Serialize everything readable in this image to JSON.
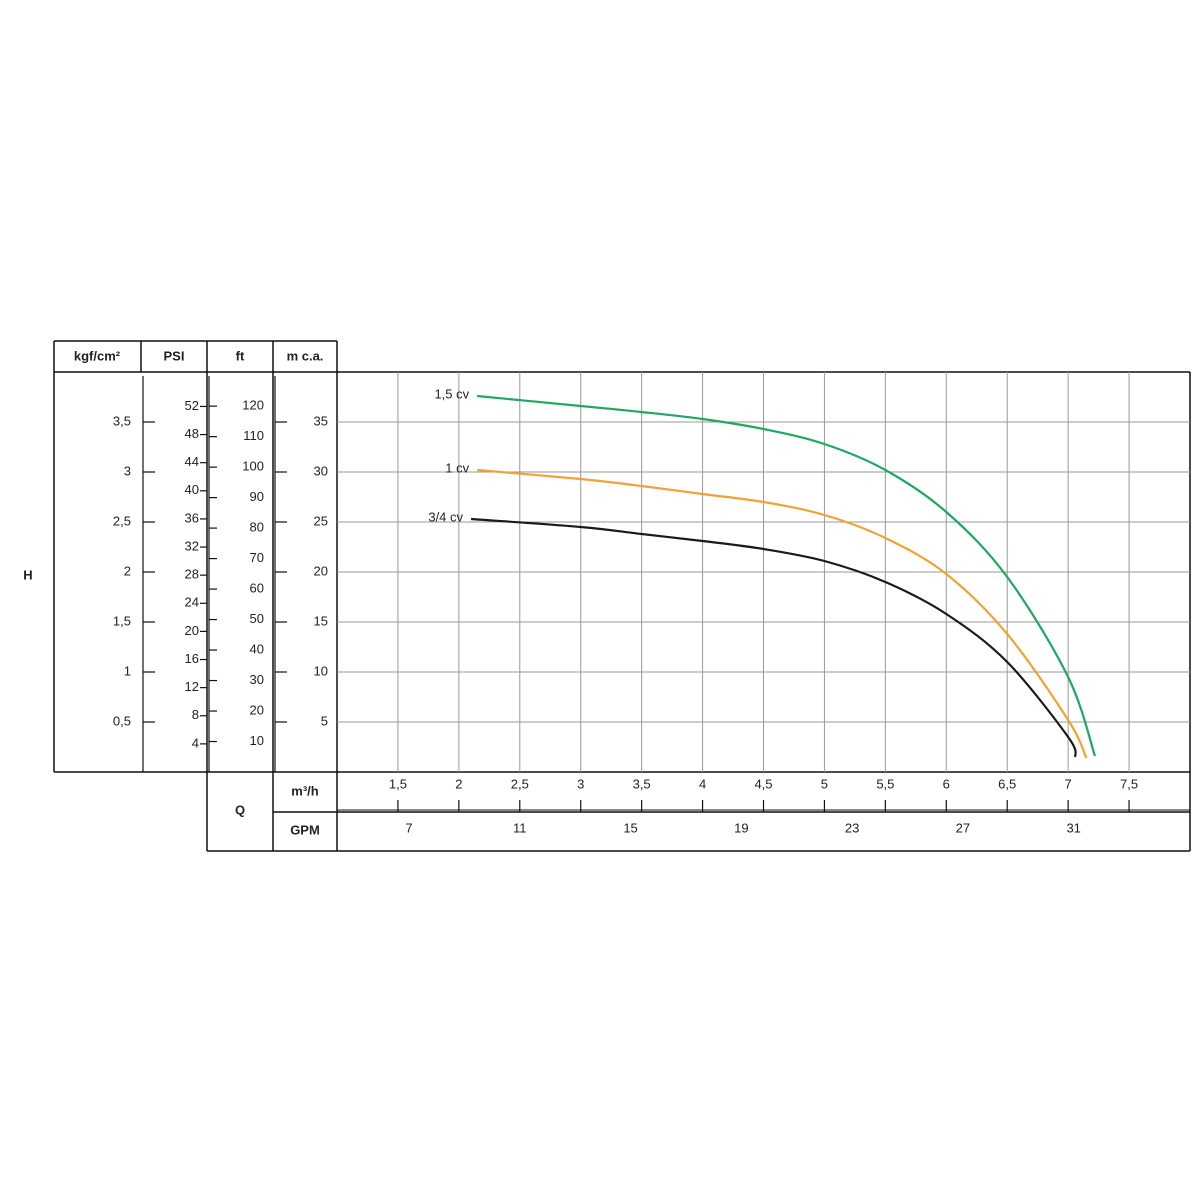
{
  "chart_data": {
    "type": "line",
    "y_axis_label": "H",
    "x_axis_label": "Q",
    "ylabel": "m c.a.",
    "ylim": [
      0,
      40
    ],
    "yticks": [
      5,
      10,
      15,
      20,
      25,
      30,
      35
    ],
    "xlabel": "m³/h",
    "xlim": [
      1,
      8
    ],
    "xticks": [
      {
        "value": 1.5,
        "label": "1,5"
      },
      2,
      {
        "value": 2.5,
        "label": "2,5"
      },
      3,
      {
        "value": 3.5,
        "label": "3,5"
      },
      4,
      {
        "value": 4.5,
        "label": "4,5"
      },
      5,
      {
        "value": 5.5,
        "label": "5,5"
      },
      6,
      {
        "value": 6.5,
        "label": "6,5"
      },
      7,
      {
        "value": 7.5,
        "label": "7,5"
      }
    ],
    "x2label": "GPM",
    "x2lim": [
      4.4,
      35.2
    ],
    "x2ticks": [
      7,
      11,
      15,
      19,
      23,
      27,
      31
    ],
    "secondary_y_axes": [
      {
        "label": "kgf/cm²",
        "lim": [
          0,
          4
        ],
        "ticks": [
          {
            "value": 0.5,
            "label": "0,5"
          },
          1,
          {
            "value": 1.5,
            "label": "1,5"
          },
          2,
          {
            "value": 2.5,
            "label": "2,5"
          },
          3,
          {
            "value": 3.5,
            "label": "3,5"
          }
        ]
      },
      {
        "label": "PSI",
        "lim": [
          0,
          56.9
        ],
        "ticks": [
          4,
          8,
          12,
          16,
          20,
          24,
          28,
          32,
          36,
          40,
          44,
          48,
          52
        ]
      },
      {
        "label": "ft",
        "lim": [
          0,
          131.2
        ],
        "ticks": [
          10,
          20,
          30,
          40,
          50,
          60,
          70,
          80,
          90,
          100,
          110,
          120
        ]
      }
    ],
    "grid": true,
    "series": [
      {
        "name": "1,5 cv",
        "color": "#1ea862",
        "x": [
          2.15,
          3,
          3.5,
          4,
          4.5,
          5,
          5.5,
          6,
          6.5,
          7,
          7.22
        ],
        "values": [
          37.6,
          36.6,
          36,
          35.3,
          34.3,
          32.8,
          30.2,
          26,
          19.5,
          9.5,
          1.6
        ]
      },
      {
        "name": "1 cv",
        "color": "#f0a232",
        "x": [
          2.15,
          3,
          3.5,
          4,
          4.5,
          5,
          5.5,
          6,
          6.5,
          7,
          7.15
        ],
        "values": [
          30.2,
          29.3,
          28.6,
          27.8,
          27,
          25.7,
          23.4,
          19.8,
          13.8,
          5.2,
          1.4
        ]
      },
      {
        "name": "3/4 cv",
        "color": "#1a1a1a",
        "x": [
          2.1,
          3,
          3.5,
          4,
          4.5,
          5,
          5.5,
          6,
          6.5,
          7,
          7.06
        ],
        "values": [
          25.3,
          24.5,
          23.8,
          23.1,
          22.3,
          21.1,
          19,
          15.8,
          11,
          3.5,
          1.5
        ]
      }
    ]
  }
}
